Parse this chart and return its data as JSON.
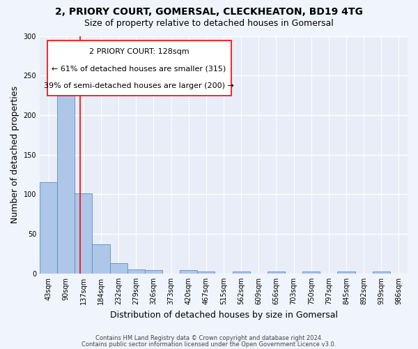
{
  "title1": "2, PRIORY COURT, GOMERSAL, CLECKHEATON, BD19 4TG",
  "title2": "Size of property relative to detached houses in Gomersal",
  "xlabel": "Distribution of detached houses by size in Gomersal",
  "ylabel": "Number of detached properties",
  "footnote1": "Contains HM Land Registry data © Crown copyright and database right 2024.",
  "footnote2": "Contains public sector information licensed under the Open Government Licence v3.0.",
  "annotation_line1": "2 PRIORY COURT: 128sqm",
  "annotation_line2": "← 61% of detached houses are smaller (315)",
  "annotation_line3": "39% of semi-detached houses are larger (200) →",
  "bar_labels": [
    "43sqm",
    "90sqm",
    "137sqm",
    "184sqm",
    "232sqm",
    "279sqm",
    "326sqm",
    "373sqm",
    "420sqm",
    "467sqm",
    "515sqm",
    "562sqm",
    "609sqm",
    "656sqm",
    "703sqm",
    "750sqm",
    "797sqm",
    "845sqm",
    "892sqm",
    "939sqm",
    "986sqm"
  ],
  "bar_values": [
    115,
    240,
    101,
    37,
    13,
    5,
    4,
    0,
    4,
    3,
    0,
    3,
    0,
    3,
    0,
    3,
    0,
    3,
    0,
    3,
    0
  ],
  "bar_color": "#aec6e8",
  "bar_edge_color": "#5a8fc0",
  "background_color": "#e8edf8",
  "fig_background": "#f0f4fc",
  "red_line_x": 1.81,
  "ylim": [
    0,
    300
  ],
  "yticks": [
    0,
    50,
    100,
    150,
    200,
    250,
    300
  ],
  "grid_color": "#ffffff",
  "title_fontsize": 10,
  "subtitle_fontsize": 9,
  "axis_label_fontsize": 9,
  "tick_fontsize": 7,
  "annot_fontsize": 8,
  "footnote_fontsize": 6
}
